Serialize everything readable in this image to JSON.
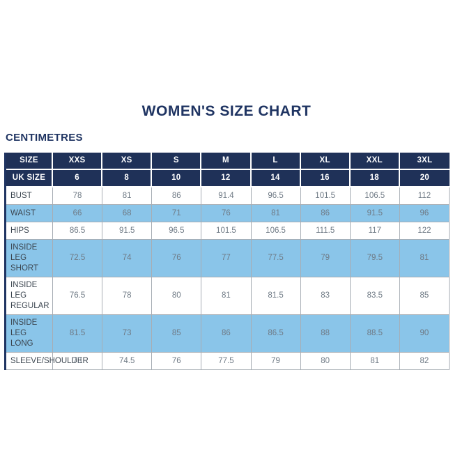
{
  "title": "WOMEN'S SIZE CHART",
  "unit_label": "CENTIMETRES",
  "colors": {
    "navy": "#1f3462",
    "header_background": "#1f3158",
    "row_highlight_blue": "#8ac5e9",
    "row_white": "#ffffff",
    "value_text": "#6f7a85",
    "label_text": "#3c4650",
    "grid_line": "#a7adb4"
  },
  "chart_data": {
    "type": "table",
    "title": "WOMEN'S SIZE CHART",
    "unit": "CENTIMETRES",
    "size_row": {
      "label": "SIZE",
      "values": [
        "XXS",
        "XS",
        "S",
        "M",
        "L",
        "XL",
        "XXL",
        "3XL"
      ]
    },
    "uk_size_row": {
      "label": "UK SIZE",
      "values": [
        "6",
        "8",
        "10",
        "12",
        "14",
        "16",
        "18",
        "20"
      ]
    },
    "measurement_rows": [
      {
        "label": "BUST",
        "values": [
          "78",
          "81",
          "86",
          "91.4",
          "96.5",
          "101.5",
          "106.5",
          "112"
        ]
      },
      {
        "label": "WAIST",
        "values": [
          "66",
          "68",
          "71",
          "76",
          "81",
          "86",
          "91.5",
          "96"
        ]
      },
      {
        "label": "HIPS",
        "values": [
          "86.5",
          "91.5",
          "96.5",
          "101.5",
          "106.5",
          "111.5",
          "117",
          "122"
        ]
      },
      {
        "label": "INSIDE LEG SHORT",
        "values": [
          "72.5",
          "74",
          "76",
          "77",
          "77.5",
          "79",
          "79.5",
          "81"
        ]
      },
      {
        "label": "INSIDE LEG REGULAR",
        "values": [
          "76.5",
          "78",
          "80",
          "81",
          "81.5",
          "83",
          "83.5",
          "85"
        ]
      },
      {
        "label": "INSIDE LEG LONG",
        "values": [
          "81.5",
          "73",
          "85",
          "86",
          "86.5",
          "88",
          "88.5",
          "90"
        ]
      },
      {
        "label": "SLEEVE/SHOULDER",
        "values": [
          "73",
          "74.5",
          "76",
          "77.5",
          "79",
          "80",
          "81",
          "82"
        ]
      }
    ],
    "layout_hints": {
      "highlighted_rows": [
        "WAIST",
        "INSIDE LEG SHORT",
        "INSIDE LEG LONG"
      ],
      "header_style": "navy-with-white-text",
      "grid": true
    }
  }
}
